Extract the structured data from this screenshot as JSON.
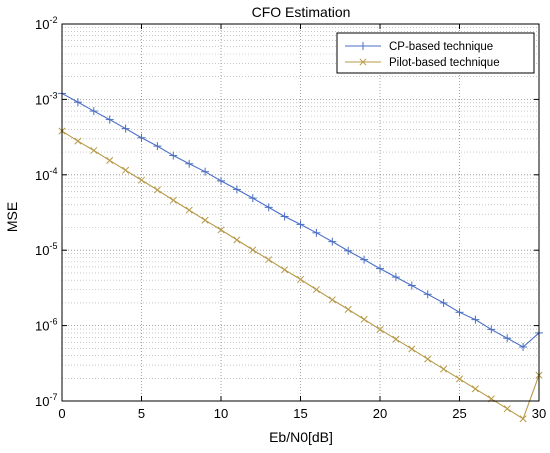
{
  "chart_data": {
    "type": "line",
    "title": "CFO Estimation",
    "xlabel": "Eb/N0[dB]",
    "ylabel": "MSE",
    "xlim": [
      0,
      30
    ],
    "ylim": [
      1e-07,
      0.01
    ],
    "yscale": "log",
    "grid": true,
    "legend_position": "top-right",
    "x_ticks": [
      0,
      5,
      10,
      15,
      20,
      25,
      30
    ],
    "y_ticks": [
      {
        "base": "10",
        "exp": "-7"
      },
      {
        "base": "10",
        "exp": "-6"
      },
      {
        "base": "10",
        "exp": "-5"
      },
      {
        "base": "10",
        "exp": "-4"
      },
      {
        "base": "10",
        "exp": "-3"
      },
      {
        "base": "10",
        "exp": "-2"
      }
    ],
    "x": [
      0,
      1,
      2,
      3,
      4,
      5,
      6,
      7,
      8,
      9,
      10,
      11,
      12,
      13,
      14,
      15,
      16,
      17,
      18,
      19,
      20,
      21,
      22,
      23,
      24,
      25,
      26,
      27,
      28,
      29,
      30
    ],
    "series": [
      {
        "name": "CP-based technique",
        "color": "#4a6fc4",
        "marker": "plus",
        "values": [
          0.0012,
          0.00092,
          0.0007,
          0.00054,
          0.00041,
          0.00031,
          0.00024,
          0.00018,
          0.00014,
          0.00011,
          8.3e-05,
          6.4e-05,
          4.9e-05,
          3.7e-05,
          2.8e-05,
          2.2e-05,
          1.7e-05,
          1.3e-05,
          9.8e-06,
          7.5e-06,
          5.7e-06,
          4.4e-06,
          3.4e-06,
          2.6e-06,
          2e-06,
          1.5e-06,
          1.2e-06,
          8.9e-07,
          6.8e-07,
          5.2e-07,
          8e-07
        ]
      },
      {
        "name": "Pilot-based technique",
        "color": "#b89a4a",
        "marker": "x",
        "values": [
          0.00038,
          0.00028,
          0.00021,
          0.000155,
          0.000115,
          8.5e-05,
          6.3e-05,
          4.6e-05,
          3.4e-05,
          2.5e-05,
          1.86e-05,
          1.37e-05,
          1.01e-05,
          7.5e-06,
          5.5e-06,
          4.1e-06,
          3e-06,
          2.2e-06,
          1.64e-06,
          1.21e-06,
          8.9e-07,
          6.6e-07,
          4.9e-07,
          3.6e-07,
          2.65e-07,
          1.96e-07,
          1.45e-07,
          1.07e-07,
          7.9e-08,
          5.8e-08,
          2.2e-07
        ]
      }
    ]
  }
}
